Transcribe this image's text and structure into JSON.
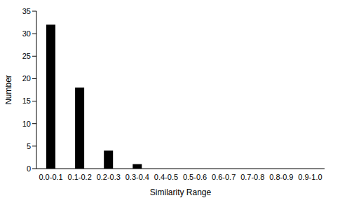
{
  "chart_data": {
    "type": "bar",
    "categories": [
      "0.0-0.1",
      "0.1-0.2",
      "0.2-0.3",
      "0.3-0.4",
      "0.4-0.5",
      "0.5-0.6",
      "0.6-0.7",
      "0.7-0.8",
      "0.8-0.9",
      "0.9-1.0"
    ],
    "values": [
      32,
      18,
      4,
      1,
      0,
      0,
      0,
      0,
      0,
      0
    ],
    "color": "#000000",
    "x_label": "Similarity Range",
    "y_label": "Number",
    "ylim": [
      0,
      35
    ],
    "yticks": [
      0,
      5,
      10,
      15,
      20,
      25,
      30,
      35
    ],
    "grid": false
  }
}
